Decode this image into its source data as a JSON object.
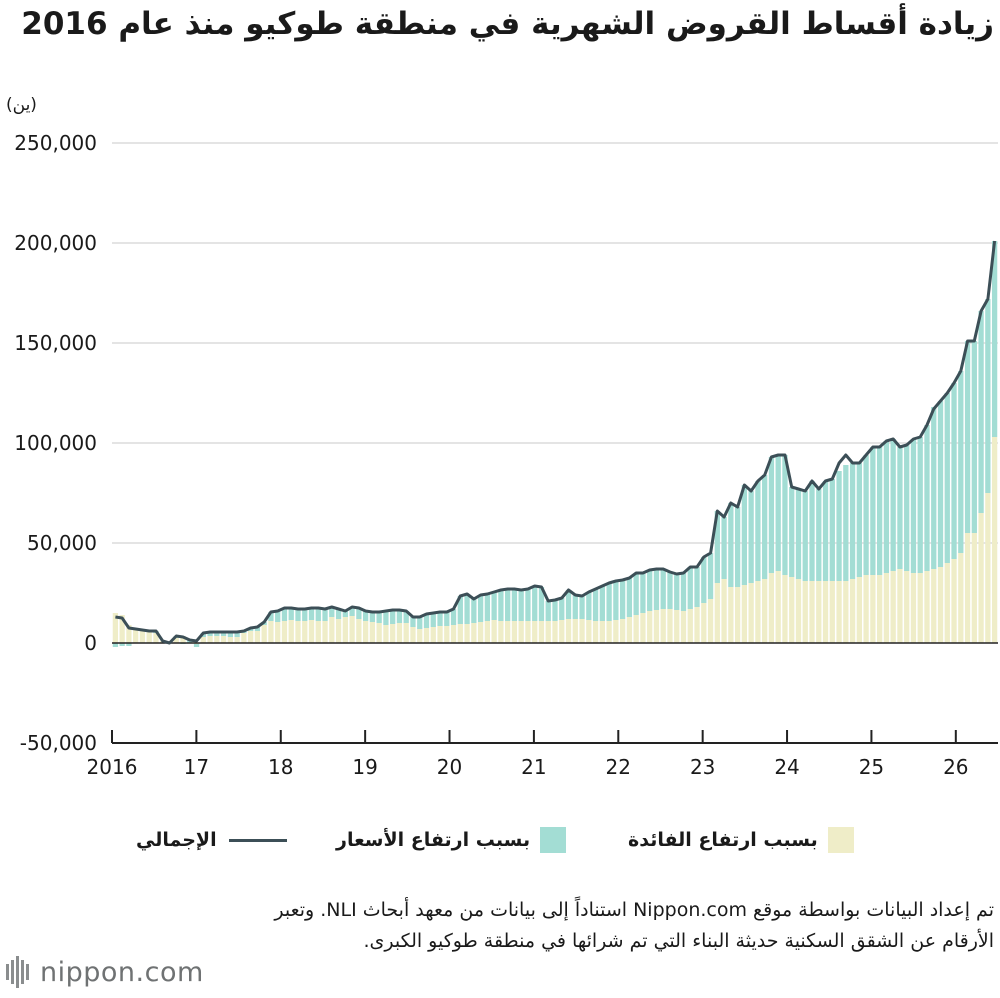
{
  "header": {
    "title": "زيادة أقساط القروض الشهرية في منطقة طوكيو منذ عام 2016"
  },
  "colors": {
    "rate": "#efedc8",
    "price": "#a3ddd4",
    "total": "#3c4f57",
    "axis": "#222222"
  },
  "legend": {
    "rate_label": "بسبب ارتفاع الفائدة",
    "price_label": "بسبب ارتفاع الأسعار",
    "total_label": "الإجمالي"
  },
  "source": {
    "text": "تم إعداد البيانات بواسطة موقع Nippon.com استناداً إلى بيانات من معهد أبحاث NLI. وتعبر الأرقام عن الشقق السكنية حديثة البناء التي تم شرائها في منطقة طوكيو الكبرى."
  },
  "logo": {
    "text": "nippon.com"
  },
  "chart_data": {
    "type": "bar",
    "stacked": true,
    "title": "زيادة أقساط القروض الشهرية في منطقة طوكيو منذ عام 2016",
    "unit": "(ين)",
    "ylim": [
      -50000,
      250000
    ],
    "yticks": [
      -50000,
      0,
      50000,
      100000,
      150000,
      200000,
      250000
    ],
    "ytick_labels": [
      "-50,000",
      "0",
      "50,000",
      "100,000",
      "150,000",
      "200,000",
      "250,000"
    ],
    "xlim": [
      2016,
      2026.5
    ],
    "xticks": [
      2016,
      2017,
      2018,
      2019,
      2020,
      2021,
      2022,
      2023,
      2024,
      2025,
      2026
    ],
    "xtick_labels": [
      "2016",
      "17",
      "18",
      "19",
      "20",
      "21",
      "22",
      "23",
      "24",
      "25",
      "26"
    ],
    "grid": "horizontal",
    "legend_position": "bottom",
    "series": [
      {
        "name": "بسبب ارتفاع الفائدة",
        "type": "bar",
        "values": [
          15000,
          14000,
          9000,
          7000,
          6500,
          6000,
          5000,
          1000,
          0,
          2500,
          3500,
          0,
          -500,
          3000,
          3500,
          3500,
          3500,
          3000,
          3000,
          5000,
          6000,
          6000,
          9000,
          11000,
          10500,
          11000,
          11500,
          11000,
          11000,
          11500,
          11000,
          11000,
          13000,
          12000,
          13000,
          13500,
          12000,
          11000,
          10500,
          10000,
          9000,
          9500,
          10000,
          10000,
          8000,
          7000,
          7500,
          8000,
          8500,
          8500,
          9000,
          9500,
          9500,
          10000,
          10500,
          11000,
          11500,
          11000,
          11000,
          11000,
          11000,
          11000,
          11000,
          11000,
          11000,
          11000,
          11500,
          12000,
          12000,
          12000,
          11500,
          11000,
          11000,
          11000,
          11500,
          12000,
          13000,
          14000,
          15000,
          16000,
          16500,
          17000,
          17000,
          16500,
          16000,
          17000,
          18000,
          20000,
          22000,
          30000,
          32000,
          28000,
          28000,
          29000,
          30000,
          31000,
          32000,
          35000,
          36000,
          34000,
          33000,
          32000,
          31000,
          31000,
          31000,
          31000,
          31000,
          31000,
          31000,
          32000,
          33000,
          34000,
          34000,
          34000,
          35000,
          36000,
          37000,
          36000,
          35000,
          35000,
          36000,
          37000,
          38000,
          40000,
          42000,
          45000,
          55000,
          55000,
          65000,
          75000,
          103000
        ]
      },
      {
        "name": "بسبب ارتفاع الأسعار",
        "type": "bar",
        "values": [
          -2000,
          -1500,
          -1500,
          0,
          0,
          0,
          1000,
          0,
          0,
          1000,
          -500,
          1500,
          -1500,
          2000,
          2000,
          2000,
          2000,
          2500,
          2500,
          1000,
          1500,
          2500,
          1500,
          4500,
          5500,
          6500,
          6000,
          6000,
          6000,
          6000,
          6500,
          6000,
          5000,
          5000,
          3000,
          4500,
          5500,
          5000,
          5000,
          5500,
          7000,
          7000,
          6500,
          6000,
          5000,
          6000,
          7000,
          7000,
          7000,
          7000,
          8000,
          14000,
          15000,
          12000,
          13500,
          13500,
          14000,
          15500,
          16000,
          16000,
          15500,
          16000,
          17500,
          17000,
          10000,
          10500,
          11000,
          14500,
          12000,
          11500,
          14000,
          16000,
          17500,
          19000,
          19500,
          19500,
          19500,
          21000,
          20000,
          20500,
          20500,
          20000,
          18500,
          18000,
          19000,
          21000,
          20000,
          23000,
          23000,
          36000,
          31000,
          42000,
          40000,
          50000,
          46000,
          50000,
          52000,
          58000,
          58000,
          60000,
          45000,
          45000,
          45000,
          50000,
          46000,
          50000,
          51000,
          55000,
          58000,
          58000,
          57000,
          60000,
          64000,
          64000,
          66000,
          66000,
          61000,
          63000,
          67000,
          68000,
          73000,
          81000,
          83000,
          85000,
          88000,
          91000,
          96000,
          96000,
          101000,
          97000,
          98000
        ]
      },
      {
        "name": "الإجمالي",
        "type": "line",
        "values": [
          13000,
          12500,
          7500,
          7000,
          6500,
          6000,
          6000,
          1000,
          0,
          3500,
          3000,
          1500,
          1000,
          5000,
          5500,
          5500,
          5500,
          5500,
          5500,
          6000,
          7500,
          8000,
          10500,
          15500,
          16000,
          17500,
          17500,
          17000,
          17000,
          17500,
          17500,
          17000,
          18000,
          17000,
          16000,
          18000,
          17500,
          16000,
          15500,
          15500,
          16000,
          16500,
          16500,
          16000,
          13000,
          13000,
          14500,
          15000,
          15500,
          15500,
          17000,
          23500,
          24500,
          22000,
          24000,
          24500,
          25500,
          26500,
          27000,
          27000,
          26500,
          27000,
          28500,
          28000,
          21000,
          21500,
          22500,
          26500,
          24000,
          23500,
          25500,
          27000,
          28500,
          30000,
          31000,
          31500,
          32500,
          35000,
          35000,
          36500,
          37000,
          37000,
          35500,
          34500,
          35000,
          38000,
          38000,
          43000,
          45000,
          66000,
          63000,
          70000,
          68000,
          79000,
          76000,
          81000,
          84000,
          93000,
          94000,
          94000,
          78000,
          77000,
          76000,
          81000,
          77000,
          81000,
          82000,
          90000,
          94000,
          90000,
          90000,
          94000,
          98000,
          98000,
          101000,
          102000,
          98000,
          99000,
          102000,
          103000,
          109000,
          117000,
          121000,
          125000,
          130000,
          136000,
          151000,
          151000,
          166000,
          172000,
          201000
        ]
      }
    ]
  }
}
